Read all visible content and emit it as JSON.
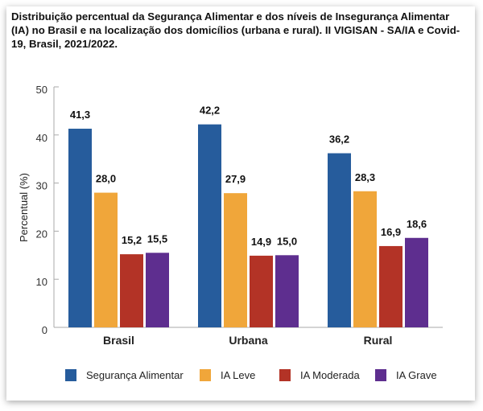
{
  "chart_data": {
    "type": "bar",
    "title": "Distribuição percentual da Segurança Alimentar e dos níveis de Insegurança Alimentar (IA) no Brasil e na localização dos domicílios (urbana e rural). II VIGISAN - SA/IA e Covid-19, Brasil, 2021/2022.",
    "xlabel": "",
    "ylabel": "Percentual (%)",
    "ylim": [
      0,
      50
    ],
    "yticks": [
      0,
      10,
      20,
      30,
      40,
      50
    ],
    "grid": false,
    "legend_position": "bottom",
    "categories": [
      "Brasil",
      "Urbana",
      "Rural"
    ],
    "series": [
      {
        "name": "Segurança Alimentar",
        "color": "#265c9c",
        "values": [
          41.3,
          42.2,
          36.2
        ],
        "labels": [
          "41,3",
          "42,2",
          "36,2"
        ]
      },
      {
        "name": "IA Leve",
        "color": "#f0a63a",
        "values": [
          28.0,
          27.9,
          28.3
        ],
        "labels": [
          "28,0",
          "27,9",
          "28,3"
        ]
      },
      {
        "name": "IA Moderada",
        "color": "#b33326",
        "values": [
          15.2,
          14.9,
          16.9
        ],
        "labels": [
          "15,2",
          "14,9",
          "16,9"
        ]
      },
      {
        "name": "IA Grave",
        "color": "#5e2e8f",
        "values": [
          15.5,
          15.0,
          18.6
        ],
        "labels": [
          "15,5",
          "15,0",
          "18,6"
        ]
      }
    ]
  }
}
